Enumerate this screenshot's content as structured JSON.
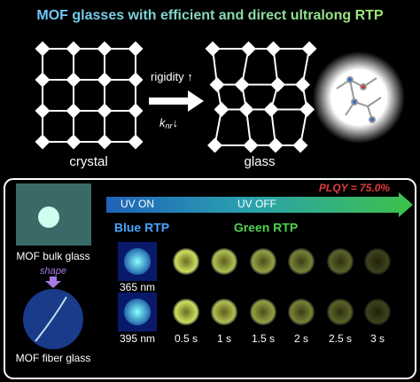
{
  "header": {
    "title": "MOF glasses with efficient and direct ultralong RTP"
  },
  "top": {
    "rigidity": "rigidity",
    "rigidity_arrow": "↑",
    "k": "k",
    "k_sub": "nr",
    "k_arrow": "↓",
    "crystal_label": "crystal",
    "glass_label": "glass"
  },
  "bottom": {
    "plqy": "PLQY = 75.0%",
    "uv_on": "UV ON",
    "uv_off": "UV OFF",
    "blue_rtp": "Blue RTP",
    "green_rtp": "Green RTP",
    "bulk_label": "MOF bulk glass",
    "shape_label": "shape",
    "fiber_label": "MOF fiber glass",
    "wavelengths": [
      "365 nm",
      "395 nm"
    ],
    "times": [
      "0.5 s",
      "1 s",
      "1.5 s",
      "2 s",
      "2.5 s",
      "3 s"
    ]
  }
}
